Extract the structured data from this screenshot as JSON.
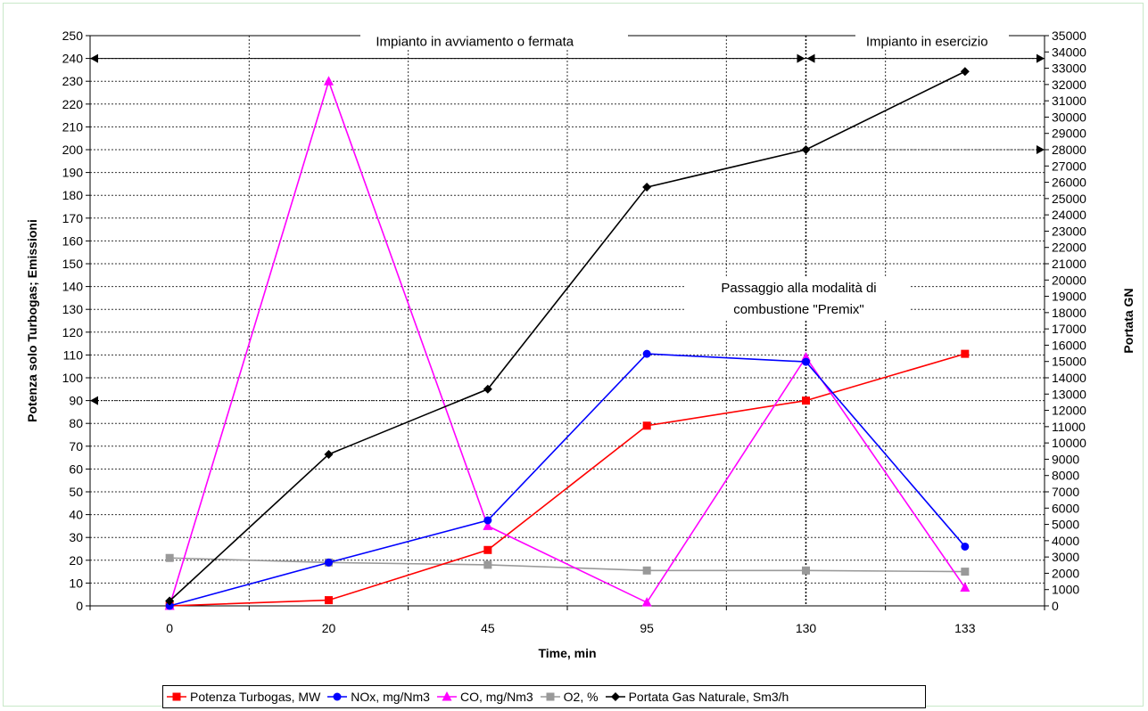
{
  "chart_data": {
    "type": "line",
    "categories": [
      "0",
      "20",
      "45",
      "95",
      "130",
      "133"
    ],
    "xlabel": "Time, min",
    "ylabel_left": "Potenza solo Turbogas; Emissioni",
    "ylabel_right": "Portata GN",
    "ylim_left": [
      0,
      250
    ],
    "ylim_right": [
      0,
      35000
    ],
    "grid": true,
    "legend_position": "bottom",
    "series": [
      {
        "name": "Potenza Turbogas, MW",
        "axis": "left",
        "color": "#ff0000",
        "marker": "square",
        "values": [
          0,
          2.5,
          24.5,
          79,
          90,
          110.5
        ]
      },
      {
        "name": "NOx, mg/Nm3",
        "axis": "left",
        "color": "#0000ff",
        "marker": "circle",
        "values": [
          0,
          19,
          37.5,
          110.5,
          107,
          26
        ]
      },
      {
        "name": "CO, mg/Nm3",
        "axis": "left",
        "color": "#ff00ff",
        "marker": "triangle",
        "values": [
          0,
          230,
          35,
          1.5,
          109,
          8
        ]
      },
      {
        "name": "O2, %",
        "axis": "left",
        "color": "#999999",
        "marker": "square",
        "values": [
          21,
          19,
          18,
          15.5,
          15.5,
          15
        ]
      },
      {
        "name": "Portata Gas Naturale, Sm3/h",
        "axis": "right",
        "color": "#000000",
        "marker": "diamond",
        "values": [
          300,
          9300,
          13300,
          25700,
          28000,
          32800
        ]
      }
    ],
    "annotations": {
      "startup": "Impianto in avviamento o fermata",
      "operating": "Impianto in esercizio",
      "premix_line1": "Passaggio alla modalità di",
      "premix_line2": "combustione \"Premix\""
    },
    "reference_lines": {
      "left_value": 90,
      "right_value": 28000,
      "top_value": 240,
      "vertical_category": "130"
    }
  }
}
